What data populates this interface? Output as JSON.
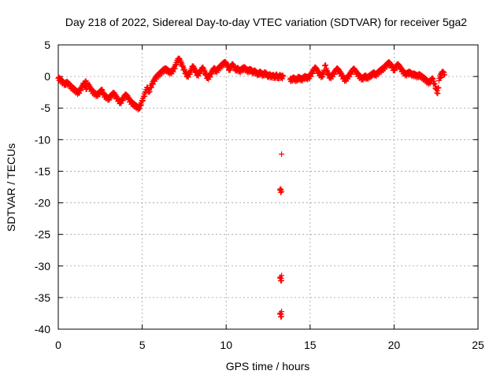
{
  "chart_data": {
    "type": "scatter",
    "title": "Day 218 of 2022, Sidereal Day-to-day VTEC variation (SDTVAR) for receiver 5ga2",
    "xlabel": "GPS time / hours",
    "ylabel": "SDTVAR / TECUs",
    "xlim": [
      0,
      25
    ],
    "ylim": [
      -40,
      5
    ],
    "xticks": [
      0,
      5,
      10,
      15,
      20,
      25
    ],
    "yticks": [
      5,
      0,
      -5,
      -10,
      -15,
      -20,
      -25,
      -30,
      -35,
      -40
    ],
    "grid": true,
    "marker": "+",
    "color": "#ff0000",
    "series": [
      {
        "name": "SDTVAR",
        "points": [
          [
            0.0,
            -0.3
          ],
          [
            0.1,
            -0.5
          ],
          [
            0.2,
            -0.8
          ],
          [
            0.3,
            -1.0
          ],
          [
            0.4,
            -1.3
          ],
          [
            0.5,
            -1.0
          ],
          [
            0.6,
            -1.2
          ],
          [
            0.7,
            -1.5
          ],
          [
            0.8,
            -1.8
          ],
          [
            0.9,
            -2.0
          ],
          [
            1.0,
            -2.2
          ],
          [
            1.1,
            -2.5
          ],
          [
            1.2,
            -2.6
          ],
          [
            1.3,
            -2.2
          ],
          [
            1.4,
            -1.8
          ],
          [
            1.5,
            -1.2
          ],
          [
            1.6,
            -1.6
          ],
          [
            1.7,
            -2.0
          ],
          [
            1.6,
            -0.8
          ],
          [
            1.8,
            -1.4
          ],
          [
            1.9,
            -1.9
          ],
          [
            2.0,
            -2.3
          ],
          [
            2.1,
            -2.6
          ],
          [
            2.2,
            -2.8
          ],
          [
            2.3,
            -3.0
          ],
          [
            2.4,
            -2.8
          ],
          [
            2.5,
            -2.5
          ],
          [
            2.6,
            -2.2
          ],
          [
            2.7,
            -2.9
          ],
          [
            2.8,
            -3.2
          ],
          [
            2.9,
            -3.4
          ],
          [
            3.0,
            -3.6
          ],
          [
            3.1,
            -3.3
          ],
          [
            3.2,
            -3.0
          ],
          [
            3.3,
            -2.7
          ],
          [
            3.4,
            -3.1
          ],
          [
            3.5,
            -3.5
          ],
          [
            3.6,
            -3.9
          ],
          [
            3.7,
            -4.2
          ],
          [
            3.8,
            -3.8
          ],
          [
            3.9,
            -3.4
          ],
          [
            4.0,
            -3.0
          ],
          [
            4.1,
            -3.2
          ],
          [
            4.2,
            -3.6
          ],
          [
            4.3,
            -4.0
          ],
          [
            4.4,
            -4.3
          ],
          [
            4.5,
            -4.5
          ],
          [
            4.6,
            -4.7
          ],
          [
            4.7,
            -4.9
          ],
          [
            4.8,
            -5.1
          ],
          [
            4.9,
            -4.6
          ],
          [
            5.0,
            -3.9
          ],
          [
            5.1,
            -3.2
          ],
          [
            5.2,
            -2.5
          ],
          [
            5.3,
            -1.8
          ],
          [
            5.4,
            -2.5
          ],
          [
            5.5,
            -1.8
          ],
          [
            5.6,
            -1.2
          ],
          [
            5.7,
            -0.7
          ],
          [
            5.8,
            -0.3
          ],
          [
            5.9,
            0.0
          ],
          [
            6.0,
            0.3
          ],
          [
            6.1,
            0.5
          ],
          [
            6.2,
            0.8
          ],
          [
            6.3,
            1.0
          ],
          [
            6.4,
            1.1
          ],
          [
            6.5,
            0.9
          ],
          [
            6.6,
            0.7
          ],
          [
            6.7,
            0.6
          ],
          [
            6.8,
            0.8
          ],
          [
            6.9,
            1.2
          ],
          [
            7.0,
            1.8
          ],
          [
            7.1,
            2.5
          ],
          [
            7.2,
            2.7
          ],
          [
            7.3,
            2.2
          ],
          [
            7.4,
            1.6
          ],
          [
            7.5,
            1.0
          ],
          [
            7.6,
            0.4
          ],
          [
            7.7,
            0.0
          ],
          [
            7.8,
            0.3
          ],
          [
            7.9,
            0.9
          ],
          [
            8.0,
            1.5
          ],
          [
            8.1,
            1.2
          ],
          [
            8.2,
            0.6
          ],
          [
            8.3,
            0.2
          ],
          [
            8.4,
            0.5
          ],
          [
            8.5,
            0.9
          ],
          [
            8.6,
            1.3
          ],
          [
            8.7,
            0.8
          ],
          [
            8.8,
            0.2
          ],
          [
            8.9,
            -0.3
          ],
          [
            9.0,
            -0.1
          ],
          [
            9.1,
            0.4
          ],
          [
            9.2,
            0.9
          ],
          [
            9.3,
            1.2
          ],
          [
            9.4,
            0.8
          ],
          [
            9.5,
            1.0
          ],
          [
            9.6,
            1.4
          ],
          [
            9.7,
            1.6
          ],
          [
            9.8,
            1.9
          ],
          [
            9.9,
            2.1
          ],
          [
            10.0,
            2.0
          ],
          [
            10.1,
            1.5
          ],
          [
            10.2,
            1.0
          ],
          [
            10.3,
            1.6
          ],
          [
            10.4,
            1.8
          ],
          [
            10.5,
            1.3
          ],
          [
            10.6,
            1.0
          ],
          [
            10.7,
            1.2
          ],
          [
            10.8,
            0.8
          ],
          [
            10.9,
            1.0
          ],
          [
            11.0,
            1.2
          ],
          [
            11.1,
            1.3
          ],
          [
            11.2,
            1.0
          ],
          [
            11.3,
            0.8
          ],
          [
            11.4,
            1.0
          ],
          [
            11.5,
            0.9
          ],
          [
            11.6,
            0.6
          ],
          [
            11.7,
            0.8
          ],
          [
            11.8,
            0.5
          ],
          [
            11.9,
            0.3
          ],
          [
            12.0,
            0.6
          ],
          [
            12.1,
            0.4
          ],
          [
            12.2,
            0.2
          ],
          [
            12.3,
            0.5
          ],
          [
            12.4,
            0.3
          ],
          [
            12.5,
            0.0
          ],
          [
            12.6,
            0.2
          ],
          [
            12.7,
            -0.1
          ],
          [
            12.8,
            0.1
          ],
          [
            12.9,
            -0.2
          ],
          [
            13.0,
            0.2
          ],
          [
            13.1,
            -0.3
          ],
          [
            13.2,
            0.1
          ],
          [
            13.3,
            -0.2
          ],
          [
            13.4,
            0.0
          ],
          [
            13.3,
            -12.3
          ],
          [
            13.2,
            -18.0
          ],
          [
            13.3,
            -18.2
          ],
          [
            13.3,
            -31.5
          ],
          [
            13.2,
            -31.9
          ],
          [
            13.3,
            -32.3
          ],
          [
            13.3,
            -37.2
          ],
          [
            13.2,
            -37.6
          ],
          [
            13.3,
            -38.0
          ],
          [
            13.8,
            -0.5
          ],
          [
            13.9,
            -0.6
          ],
          [
            14.0,
            -0.3
          ],
          [
            14.1,
            -0.5
          ],
          [
            14.2,
            -0.6
          ],
          [
            14.3,
            -0.2
          ],
          [
            14.4,
            -0.4
          ],
          [
            14.5,
            -0.5
          ],
          [
            14.6,
            -0.3
          ],
          [
            14.7,
            -0.1
          ],
          [
            14.8,
            -0.3
          ],
          [
            14.9,
            -0.2
          ],
          [
            15.0,
            0.0
          ],
          [
            15.1,
            0.5
          ],
          [
            15.2,
            0.9
          ],
          [
            15.3,
            1.3
          ],
          [
            15.4,
            1.0
          ],
          [
            15.5,
            0.5
          ],
          [
            15.6,
            0.2
          ],
          [
            15.7,
            0.0
          ],
          [
            15.8,
            0.4
          ],
          [
            15.9,
            1.8
          ],
          [
            16.0,
            0.8
          ],
          [
            16.1,
            0.2
          ],
          [
            16.2,
            -0.2
          ],
          [
            16.3,
            0.0
          ],
          [
            16.4,
            0.4
          ],
          [
            16.5,
            0.8
          ],
          [
            16.6,
            1.1
          ],
          [
            16.7,
            0.9
          ],
          [
            16.8,
            0.5
          ],
          [
            16.9,
            0.1
          ],
          [
            17.0,
            -0.4
          ],
          [
            17.1,
            -0.6
          ],
          [
            17.2,
            -0.3
          ],
          [
            17.3,
            0.0
          ],
          [
            17.4,
            0.4
          ],
          [
            17.5,
            0.8
          ],
          [
            17.6,
            1.1
          ],
          [
            17.7,
            0.8
          ],
          [
            17.8,
            0.4
          ],
          [
            17.9,
            0.1
          ],
          [
            18.0,
            -0.2
          ],
          [
            18.1,
            -0.4
          ],
          [
            18.2,
            -0.2
          ],
          [
            18.3,
            0.0
          ],
          [
            18.4,
            -0.3
          ],
          [
            18.5,
            -0.1
          ],
          [
            18.6,
            0.1
          ],
          [
            18.7,
            0.3
          ],
          [
            18.8,
            0.5
          ],
          [
            18.9,
            0.2
          ],
          [
            19.0,
            0.4
          ],
          [
            19.1,
            0.7
          ],
          [
            19.2,
            0.9
          ],
          [
            19.3,
            1.1
          ],
          [
            19.4,
            1.3
          ],
          [
            19.5,
            1.6
          ],
          [
            19.6,
            1.9
          ],
          [
            19.7,
            2.1
          ],
          [
            19.8,
            1.8
          ],
          [
            19.9,
            1.4
          ],
          [
            20.0,
            1.0
          ],
          [
            20.1,
            1.4
          ],
          [
            20.2,
            1.8
          ],
          [
            20.3,
            1.6
          ],
          [
            20.4,
            1.2
          ],
          [
            20.5,
            0.8
          ],
          [
            20.6,
            0.5
          ],
          [
            20.7,
            0.3
          ],
          [
            20.8,
            0.4
          ],
          [
            20.9,
            0.6
          ],
          [
            21.0,
            0.4
          ],
          [
            21.1,
            0.2
          ],
          [
            21.2,
            0.3
          ],
          [
            21.3,
            0.1
          ],
          [
            21.4,
            0.0
          ],
          [
            21.5,
            0.2
          ],
          [
            21.6,
            0.0
          ],
          [
            21.7,
            -0.2
          ],
          [
            21.8,
            -0.4
          ],
          [
            21.9,
            -0.6
          ],
          [
            22.0,
            -0.9
          ],
          [
            22.1,
            -1.0
          ],
          [
            22.2,
            -0.7
          ],
          [
            22.3,
            -0.4
          ],
          [
            22.4,
            -1.2
          ],
          [
            22.5,
            -2.0
          ],
          [
            22.6,
            -2.7
          ],
          [
            22.7,
            -0.3
          ],
          [
            22.8,
            0.3
          ],
          [
            22.9,
            0.6
          ],
          [
            23.0,
            0.3
          ],
          [
            22.8,
            -0.1
          ]
        ]
      }
    ]
  }
}
